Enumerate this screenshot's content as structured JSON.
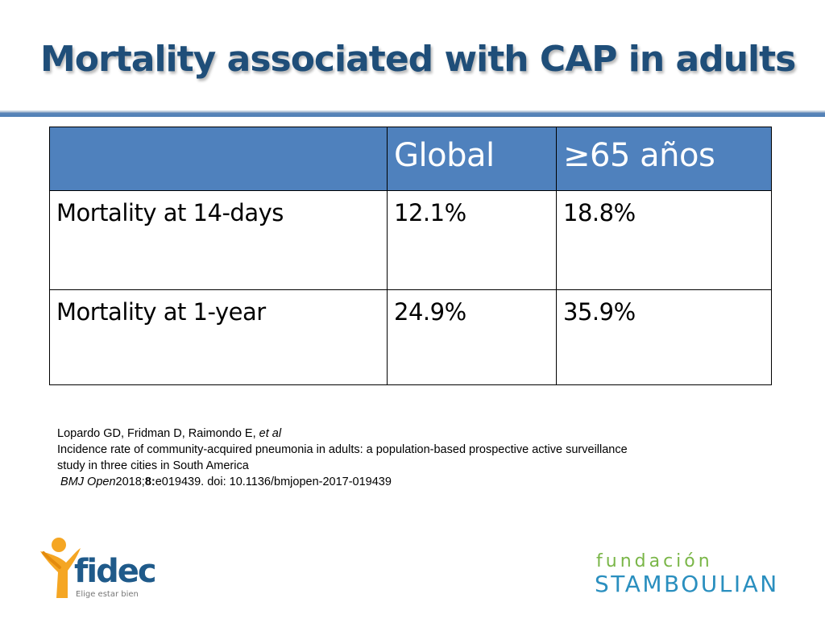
{
  "slide": {
    "title": "Mortality associated with CAP in adults"
  },
  "table": {
    "headers": [
      "",
      "Global",
      "≥65 años"
    ],
    "rows": [
      {
        "label": "Mortality at 14-days",
        "global": "12.1%",
        "over65": "18.8%"
      },
      {
        "label": "Mortality at 1-year",
        "global": "24.9%",
        "over65": "35.9%"
      }
    ]
  },
  "reference": {
    "authors": "Lopardo GD, Fridman D, Raimondo E, ",
    "et_al": "et al",
    "title_line1": "Incidence rate of community-acquired pneumonia in adults: a population-based prospective active surveillance",
    "title_line2": "study in three cities in South America",
    "journal": "BMJ Open",
    "year": "2018;",
    "volume": "8:",
    "citation_rest": "e019439. doi: 10.1136/bmjopen-2017-019439"
  },
  "logos": {
    "fidec": {
      "name": "fidec",
      "tagline": "Elige estar bien",
      "icon": "person-y-logo-icon"
    },
    "stamboulian": {
      "line1": "fundación",
      "line2": "STAMBOULIAN"
    }
  },
  "colors": {
    "title": "#1f4e79",
    "header_fill": "#4f81bd",
    "rule": "#4f7fb6",
    "fidec_orange": "#f5a623",
    "fidec_blue": "#1f5a8a",
    "stamb_green": "#7ab648",
    "stamb_blue": "#2a8fbf"
  }
}
